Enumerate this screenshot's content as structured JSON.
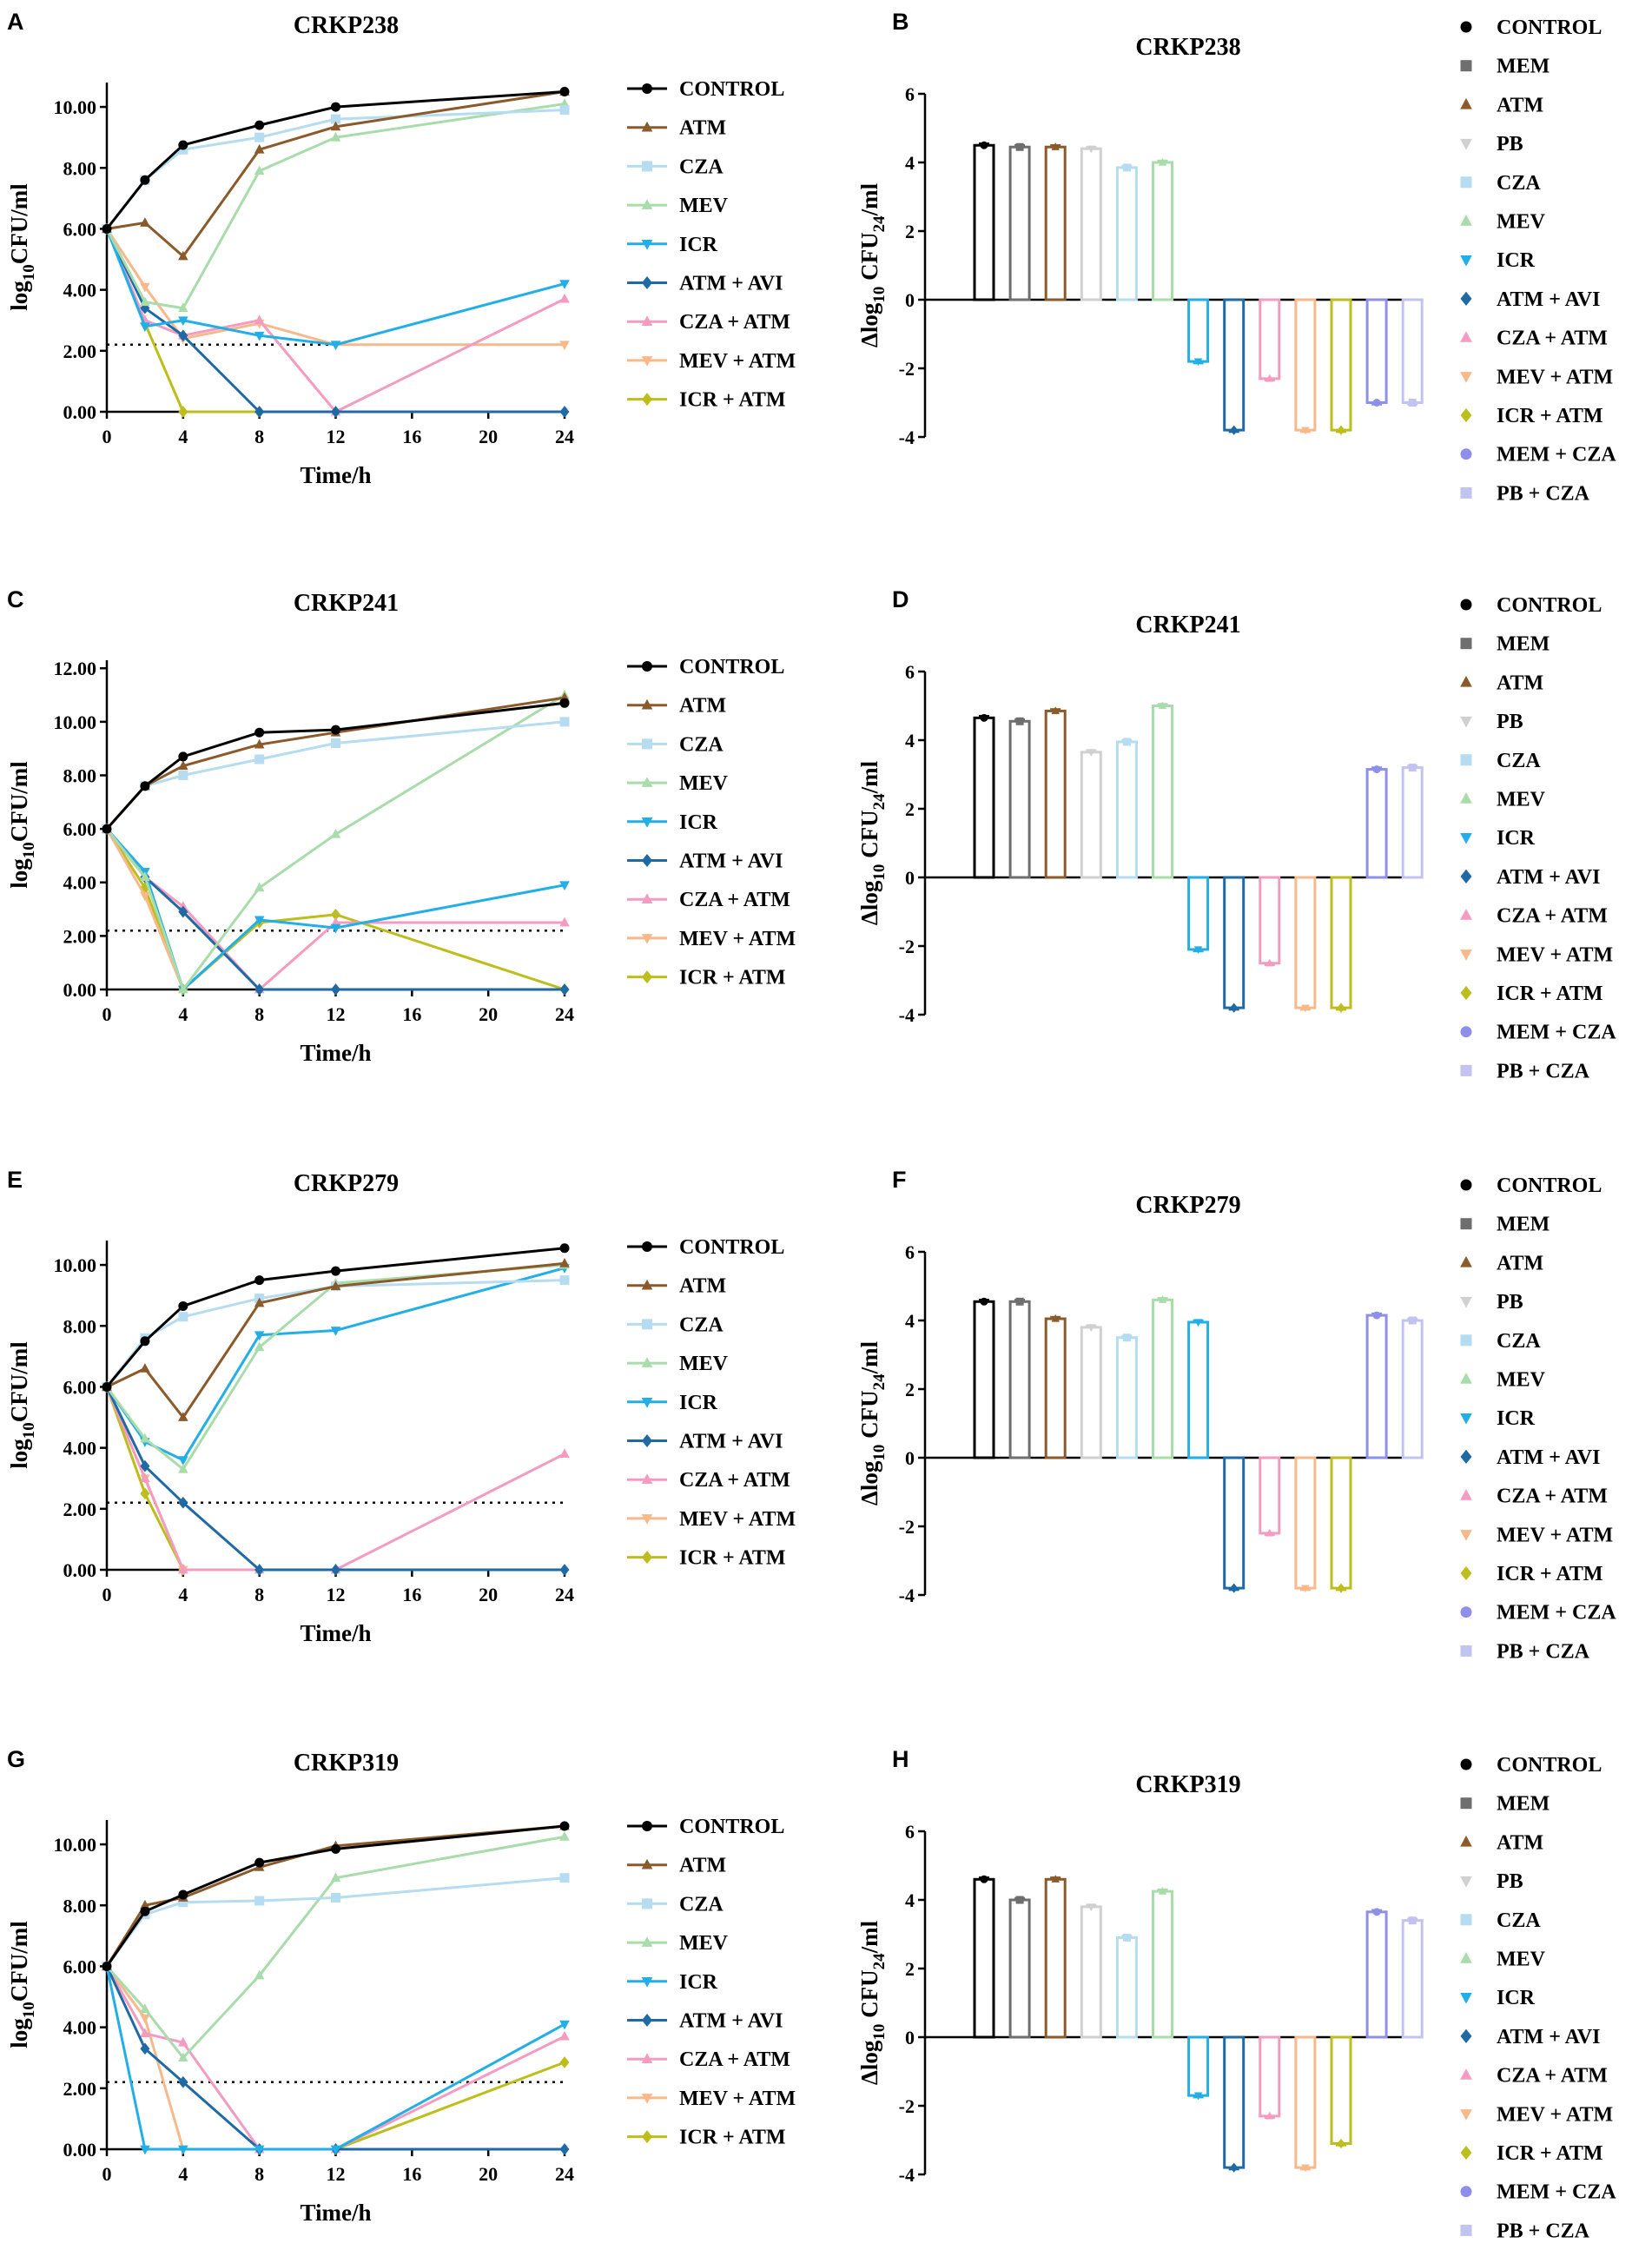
{
  "figure": {
    "panels": [
      {
        "letter": "A",
        "title": "CRKP238",
        "type": "line"
      },
      {
        "letter": "B",
        "title": "CRKP238",
        "type": "bar"
      },
      {
        "letter": "C",
        "title": "CRKP241",
        "type": "line"
      },
      {
        "letter": "D",
        "title": "CRKP241",
        "type": "bar"
      },
      {
        "letter": "E",
        "title": "CRKP279",
        "type": "line"
      },
      {
        "letter": "F",
        "title": "CRKP279",
        "type": "bar"
      },
      {
        "letter": "G",
        "title": "CRKP319",
        "type": "line"
      },
      {
        "letter": "H",
        "title": "CRKP319",
        "type": "bar"
      }
    ]
  },
  "colors": {
    "CONTROL": "#000000",
    "MEM": "#6e6e6e",
    "ATM": "#8b5a2b",
    "PB": "#d0d0d0",
    "CZA": "#b5dcf0",
    "MEV": "#a8dcaa",
    "ICR": "#22aee6",
    "ATM + AVI": "#1f6aa5",
    "CZA + ATM": "#f39bc0",
    "MEV + ATM": "#f7b98a",
    "ICR + ATM": "#bdbd1c",
    "MEM + CZA": "#8f8fea",
    "PB + CZA": "#c3c3f2"
  },
  "chart_data": [
    {
      "type": "line",
      "panel": "A",
      "title": "CRKP238",
      "xlabel": "Time/h",
      "ylabel": "log10CFU/ml",
      "ylabel_parts": [
        "log",
        "10",
        "CFU/ml"
      ],
      "x": [
        0,
        2,
        4,
        8,
        12,
        24
      ],
      "xticks": [
        0,
        4,
        8,
        12,
        16,
        20,
        24
      ],
      "xlim": [
        0,
        24
      ],
      "yticks": [
        "0.00",
        "2.00",
        "4.00",
        "6.00",
        "8.00",
        "10.00"
      ],
      "ylim": [
        0,
        10.5
      ],
      "y_axis_max": 10.8,
      "detection_limit": 2.2,
      "series": [
        {
          "name": "CONTROL",
          "marker": "circle",
          "values": [
            6.0,
            7.6,
            8.75,
            9.4,
            10.0,
            10.5
          ]
        },
        {
          "name": "ATM",
          "marker": "tri-up",
          "values": [
            6.0,
            6.2,
            5.1,
            8.6,
            9.35,
            10.5
          ]
        },
        {
          "name": "CZA",
          "marker": "square",
          "values": [
            6.0,
            7.6,
            8.6,
            9.0,
            9.6,
            9.9
          ]
        },
        {
          "name": "MEV",
          "marker": "tri-up",
          "values": [
            6.0,
            3.6,
            3.4,
            7.9,
            9.0,
            10.1
          ]
        },
        {
          "name": "ICR",
          "marker": "tri-down",
          "values": [
            6.0,
            2.8,
            3.0,
            2.5,
            2.2,
            4.2
          ]
        },
        {
          "name": "ATM + AVI",
          "marker": "diamond",
          "values": [
            6.0,
            3.4,
            2.5,
            0,
            0,
            0
          ]
        },
        {
          "name": "CZA + ATM",
          "marker": "tri-up",
          "values": [
            6.0,
            3.0,
            2.5,
            3.0,
            0,
            3.7
          ]
        },
        {
          "name": "MEV + ATM",
          "marker": "tri-down",
          "values": [
            6.0,
            4.1,
            2.4,
            2.9,
            2.2,
            2.2
          ]
        },
        {
          "name": "ICR + ATM",
          "marker": "diamond",
          "values": [
            6.0,
            2.9,
            0,
            0,
            null,
            null
          ]
        }
      ]
    },
    {
      "type": "bar",
      "panel": "B",
      "title": "CRKP238",
      "ylabel": "Δlog10 CFU24/ml",
      "ylabel_parts": [
        "Δlog",
        "10",
        " CFU",
        "24",
        "/ml"
      ],
      "yticks": [
        6,
        4,
        2,
        0,
        -2,
        -4
      ],
      "ylim": [
        -4.2,
        6
      ],
      "categories": [
        "CONTROL",
        "MEM",
        "ATM",
        "PB",
        "CZA",
        "MEV",
        "ICR",
        "ATM + AVI",
        "CZA + ATM",
        "MEV + ATM",
        "ICR + ATM",
        "MEM + CZA",
        "PB + CZA"
      ],
      "markers": [
        "circle",
        "square",
        "tri-up",
        "tri-down",
        "square",
        "tri-up",
        "tri-down",
        "diamond",
        "tri-up",
        "tri-down",
        "diamond",
        "circle",
        "square"
      ],
      "values": [
        4.5,
        4.45,
        4.45,
        4.4,
        3.85,
        4.0,
        -1.8,
        -3.8,
        -2.3,
        -3.8,
        -3.8,
        -3.0,
        -3.0
      ]
    },
    {
      "type": "line",
      "panel": "C",
      "title": "CRKP241",
      "xlabel": "Time/h",
      "ylabel": "log10CFU/ml",
      "ylabel_parts": [
        "log",
        "10",
        "CFU/ml"
      ],
      "x": [
        0,
        2,
        4,
        8,
        12,
        24
      ],
      "xticks": [
        0,
        4,
        8,
        12,
        16,
        20,
        24
      ],
      "xlim": [
        0,
        24
      ],
      "yticks": [
        "0.00",
        "2.00",
        "4.00",
        "6.00",
        "8.00",
        "10.00",
        "12.00"
      ],
      "ylim": [
        0,
        12
      ],
      "y_axis_max": 12.3,
      "detection_limit": 2.2,
      "series": [
        {
          "name": "CONTROL",
          "marker": "circle",
          "values": [
            6.0,
            7.6,
            8.7,
            9.6,
            9.7,
            10.7
          ]
        },
        {
          "name": "ATM",
          "marker": "tri-up",
          "values": [
            6.0,
            7.6,
            8.35,
            9.15,
            9.6,
            10.9
          ]
        },
        {
          "name": "CZA",
          "marker": "square",
          "values": [
            6.0,
            7.6,
            8.0,
            8.6,
            9.2,
            10.0
          ]
        },
        {
          "name": "MEV",
          "marker": "tri-up",
          "values": [
            6.0,
            4.2,
            0,
            3.8,
            5.8,
            11.0
          ]
        },
        {
          "name": "ICR",
          "marker": "tri-down",
          "values": [
            6.0,
            4.4,
            0,
            2.6,
            2.3,
            3.9
          ]
        },
        {
          "name": "ATM + AVI",
          "marker": "diamond",
          "values": [
            6.0,
            4.2,
            2.9,
            0,
            0,
            0
          ]
        },
        {
          "name": "CZA + ATM",
          "marker": "tri-up",
          "values": [
            6.0,
            4.2,
            3.1,
            0,
            2.5,
            2.5
          ]
        },
        {
          "name": "MEV + ATM",
          "marker": "tri-down",
          "values": [
            6.0,
            3.5,
            0,
            null,
            null,
            null
          ]
        },
        {
          "name": "ICR + ATM",
          "marker": "diamond",
          "values": [
            6.0,
            3.8,
            0,
            2.5,
            2.8,
            0
          ]
        }
      ]
    },
    {
      "type": "bar",
      "panel": "D",
      "title": "CRKP241",
      "ylabel": "Δlog10 CFU24/ml",
      "ylabel_parts": [
        "Δlog",
        "10",
        " CFU",
        "24",
        "/ml"
      ],
      "yticks": [
        6,
        4,
        2,
        0,
        -2,
        -4
      ],
      "ylim": [
        -4.2,
        6
      ],
      "categories": [
        "CONTROL",
        "MEM",
        "ATM",
        "PB",
        "CZA",
        "MEV",
        "ICR",
        "ATM + AVI",
        "CZA + ATM",
        "MEV + ATM",
        "ICR + ATM",
        "MEM + CZA",
        "PB + CZA"
      ],
      "markers": [
        "circle",
        "square",
        "tri-up",
        "tri-down",
        "square",
        "tri-up",
        "tri-down",
        "diamond",
        "tri-up",
        "tri-down",
        "diamond",
        "circle",
        "square"
      ],
      "values": [
        4.65,
        4.55,
        4.85,
        3.65,
        3.95,
        5.0,
        -2.1,
        -3.8,
        -2.5,
        -3.8,
        -3.8,
        3.15,
        3.2
      ]
    },
    {
      "type": "line",
      "panel": "E",
      "title": "CRKP279",
      "xlabel": "Time/h",
      "ylabel": "log10CFU/ml",
      "ylabel_parts": [
        "log",
        "10",
        "CFU/ml"
      ],
      "x": [
        0,
        2,
        4,
        8,
        12,
        24
      ],
      "xticks": [
        0,
        4,
        8,
        12,
        16,
        20,
        24
      ],
      "xlim": [
        0,
        24
      ],
      "yticks": [
        "0.00",
        "2.00",
        "4.00",
        "6.00",
        "8.00",
        "10.00"
      ],
      "ylim": [
        0,
        10.5
      ],
      "y_axis_max": 10.8,
      "detection_limit": 2.2,
      "series": [
        {
          "name": "CONTROL",
          "marker": "circle",
          "values": [
            6.0,
            7.5,
            8.65,
            9.5,
            9.8,
            10.55
          ]
        },
        {
          "name": "ATM",
          "marker": "tri-up",
          "values": [
            6.0,
            6.6,
            5.0,
            8.75,
            9.3,
            10.05
          ]
        },
        {
          "name": "CZA",
          "marker": "square",
          "values": [
            6.0,
            7.6,
            8.3,
            8.9,
            9.3,
            9.5
          ]
        },
        {
          "name": "MEV",
          "marker": "tri-up",
          "values": [
            6.0,
            4.3,
            3.3,
            7.3,
            9.4,
            10.0
          ]
        },
        {
          "name": "ICR",
          "marker": "tri-down",
          "values": [
            6.0,
            4.2,
            3.6,
            7.7,
            7.85,
            9.9
          ]
        },
        {
          "name": "ATM + AVI",
          "marker": "diamond",
          "values": [
            6.0,
            3.4,
            2.2,
            0,
            0,
            0
          ]
        },
        {
          "name": "CZA + ATM",
          "marker": "tri-up",
          "values": [
            6.0,
            3.0,
            0,
            0,
            0,
            3.8
          ]
        },
        {
          "name": "MEV + ATM",
          "marker": "tri-down",
          "values": [
            6.0,
            3.0,
            0,
            null,
            null,
            null
          ]
        },
        {
          "name": "ICR + ATM",
          "marker": "diamond",
          "values": [
            6.0,
            2.5,
            0,
            null,
            null,
            null
          ]
        }
      ]
    },
    {
      "type": "bar",
      "panel": "F",
      "title": "CRKP279",
      "ylabel": "Δlog10 CFU24/ml",
      "ylabel_parts": [
        "Δlog",
        "10",
        " CFU",
        "24",
        "/ml"
      ],
      "yticks": [
        6,
        4,
        2,
        0,
        -2,
        -4
      ],
      "ylim": [
        -4.2,
        6
      ],
      "categories": [
        "CONTROL",
        "MEM",
        "ATM",
        "PB",
        "CZA",
        "MEV",
        "ICR",
        "ATM + AVI",
        "CZA + ATM",
        "MEV + ATM",
        "ICR + ATM",
        "MEM + CZA",
        "PB + CZA"
      ],
      "markers": [
        "circle",
        "square",
        "tri-up",
        "tri-down",
        "square",
        "tri-up",
        "tri-down",
        "diamond",
        "tri-up",
        "tri-down",
        "diamond",
        "circle",
        "square"
      ],
      "values": [
        4.55,
        4.55,
        4.05,
        3.8,
        3.5,
        4.6,
        3.95,
        -3.8,
        -2.2,
        -3.8,
        -3.8,
        4.15,
        4.0
      ]
    },
    {
      "type": "line",
      "panel": "G",
      "title": "CRKP319",
      "xlabel": "Time/h",
      "ylabel": "log10CFU/ml",
      "ylabel_parts": [
        "log",
        "10",
        "CFU/ml"
      ],
      "x": [
        0,
        2,
        4,
        8,
        12,
        24
      ],
      "xticks": [
        0,
        4,
        8,
        12,
        16,
        20,
        24
      ],
      "xlim": [
        0,
        24
      ],
      "yticks": [
        "0.00",
        "2.00",
        "4.00",
        "6.00",
        "8.00",
        "10.00"
      ],
      "ylim": [
        0,
        10.5
      ],
      "y_axis_max": 10.8,
      "detection_limit": 2.2,
      "series": [
        {
          "name": "CONTROL",
          "marker": "circle",
          "values": [
            6.0,
            7.8,
            8.35,
            9.4,
            9.85,
            10.6
          ]
        },
        {
          "name": "ATM",
          "marker": "tri-up",
          "values": [
            6.0,
            8.0,
            8.25,
            9.25,
            9.95,
            10.6
          ]
        },
        {
          "name": "CZA",
          "marker": "square",
          "values": [
            6.0,
            7.7,
            8.1,
            8.15,
            8.25,
            8.9
          ]
        },
        {
          "name": "MEV",
          "marker": "tri-up",
          "values": [
            6.0,
            4.6,
            3.0,
            5.7,
            8.9,
            10.25
          ]
        },
        {
          "name": "ICR",
          "marker": "tri-down",
          "values": [
            6.0,
            0,
            0,
            0,
            0,
            4.1
          ]
        },
        {
          "name": "ATM + AVI",
          "marker": "diamond",
          "values": [
            6.0,
            3.3,
            2.2,
            0,
            0,
            0
          ]
        },
        {
          "name": "CZA + ATM",
          "marker": "tri-up",
          "values": [
            6.0,
            3.8,
            3.5,
            0,
            0,
            3.7
          ]
        },
        {
          "name": "MEV + ATM",
          "marker": "tri-down",
          "values": [
            6.0,
            4.3,
            0,
            null,
            null,
            null
          ]
        },
        {
          "name": "ICR + ATM",
          "marker": "diamond",
          "values": [
            null,
            null,
            null,
            0,
            0,
            2.85
          ]
        }
      ]
    },
    {
      "type": "bar",
      "panel": "H",
      "title": "CRKP319",
      "ylabel": "Δlog10 CFU24/ml",
      "ylabel_parts": [
        "Δlog",
        "10",
        " CFU",
        "24",
        "/ml"
      ],
      "yticks": [
        6,
        4,
        2,
        0,
        -2,
        -4
      ],
      "ylim": [
        -4.2,
        6
      ],
      "categories": [
        "CONTROL",
        "MEM",
        "ATM",
        "PB",
        "CZA",
        "MEV",
        "ICR",
        "ATM + AVI",
        "CZA + ATM",
        "MEV + ATM",
        "ICR + ATM",
        "MEM + CZA",
        "PB + CZA"
      ],
      "markers": [
        "circle",
        "square",
        "tri-up",
        "tri-down",
        "square",
        "tri-up",
        "tri-down",
        "diamond",
        "tri-up",
        "tri-down",
        "diamond",
        "circle",
        "square"
      ],
      "values": [
        4.6,
        4.0,
        4.6,
        3.8,
        2.9,
        4.25,
        -1.7,
        -3.8,
        -2.3,
        -3.8,
        -3.1,
        3.65,
        3.4
      ]
    }
  ]
}
